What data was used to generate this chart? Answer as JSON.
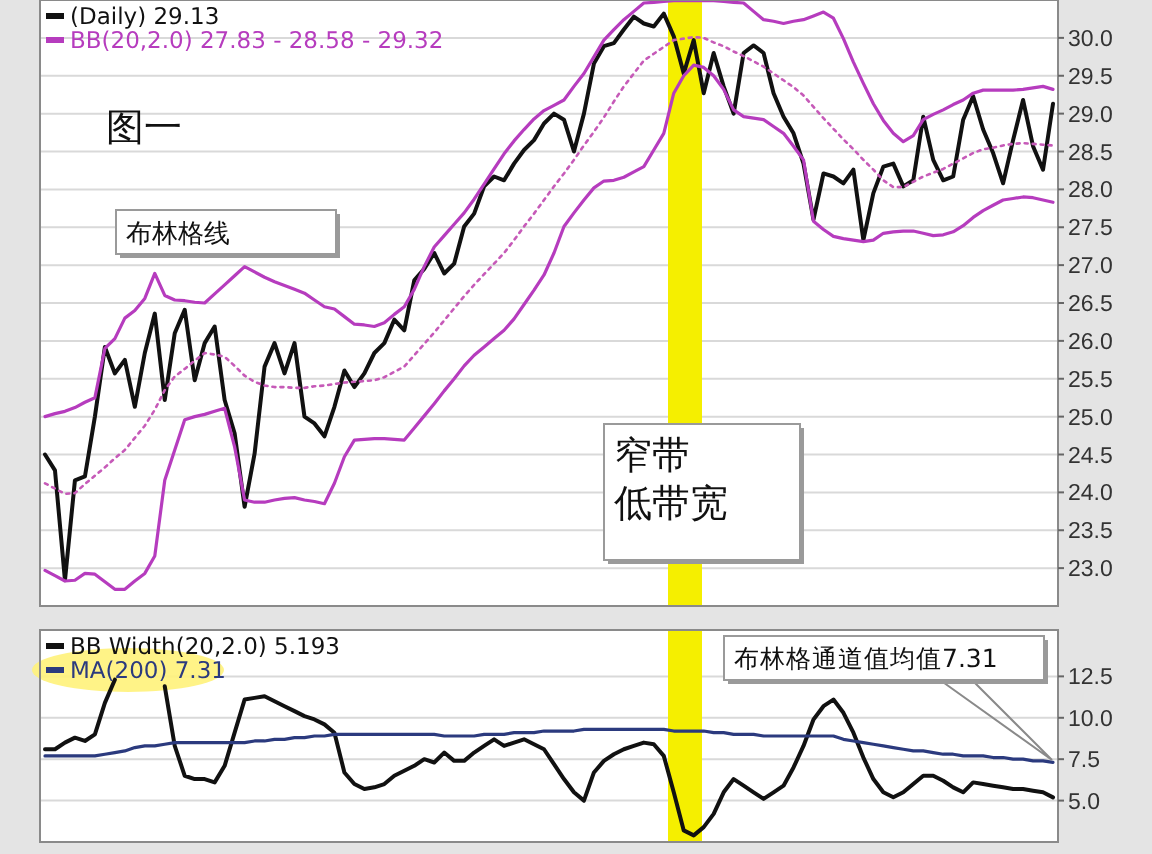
{
  "chart_data": [
    {
      "type": "line",
      "categories": [
        null,
        null,
        null,
        null,
        null,
        null,
        null,
        null,
        null,
        null,
        null,
        null,
        null,
        null,
        null,
        null,
        null,
        null,
        null,
        null,
        null,
        null,
        null,
        null,
        null,
        null,
        null,
        null,
        null,
        null,
        null,
        null,
        null,
        null,
        null,
        null,
        null,
        null,
        null,
        null,
        null,
        null,
        null,
        null,
        null,
        null,
        null,
        null,
        null,
        null,
        null,
        null,
        null,
        null,
        null,
        null,
        null,
        null,
        null,
        null,
        null,
        null,
        null,
        null,
        null,
        null,
        null,
        null,
        null,
        null,
        null,
        null,
        null,
        null,
        null,
        null,
        null,
        null,
        null,
        null,
        null,
        null,
        null,
        null,
        null,
        null,
        null,
        null,
        null,
        null,
        null,
        null,
        null,
        null,
        null,
        null,
        null,
        null,
        null,
        null,
        null,
        null
      ],
      "series": [
        {
          "name": "(Daily) 29.13",
          "color": "#111111",
          "values": [
            24.5,
            24.29,
            22.84,
            24.16,
            24.21,
            25.0,
            25.92,
            25.57,
            25.75,
            25.13,
            25.84,
            26.36,
            25.22,
            26.1,
            26.41,
            25.48,
            25.97,
            26.19,
            25.22,
            24.78,
            23.81,
            24.51,
            25.66,
            25.97,
            25.57,
            25.97,
            25.0,
            24.91,
            24.74,
            25.13,
            25.61,
            25.39,
            25.57,
            25.84,
            25.97,
            26.28,
            26.14,
            26.8,
            26.95,
            27.16,
            26.89,
            27.02,
            27.51,
            27.68,
            28.04,
            28.17,
            28.12,
            28.34,
            28.52,
            28.65,
            28.87,
            29.0,
            28.92,
            28.5,
            29.0,
            29.66,
            29.89,
            29.93,
            30.11,
            30.28,
            30.19,
            30.15,
            30.32,
            30.02,
            29.53,
            29.97,
            29.27,
            29.8,
            29.36,
            29.0,
            29.8,
            29.9,
            29.8,
            29.27,
            28.96,
            28.74,
            28.34,
            27.6,
            28.21,
            28.17,
            28.08,
            28.26,
            27.33,
            27.95,
            28.3,
            28.34,
            28.04,
            28.12,
            28.96,
            28.39,
            28.12,
            28.17,
            28.92,
            29.23,
            28.79,
            28.48,
            28.08,
            28.65,
            29.18,
            28.57,
            28.26,
            29.13
          ]
        },
        {
          "name": "BB(20,2.0) 27.83 - 28.58 - 29.32",
          "color": "#b63cbe",
          "values": [
            25.0,
            25.04,
            25.07,
            25.12,
            25.19,
            25.25,
            25.9,
            26.03,
            26.3,
            26.4,
            26.56,
            26.89,
            26.6,
            26.54,
            26.53,
            26.51,
            26.5,
            26.62,
            26.74,
            26.86,
            26.98,
            26.91,
            26.84,
            26.78,
            26.73,
            26.68,
            26.63,
            26.54,
            26.45,
            26.42,
            26.32,
            26.22,
            26.21,
            26.19,
            26.24,
            26.35,
            26.45,
            26.68,
            26.98,
            27.24,
            27.39,
            27.54,
            27.69,
            27.87,
            28.07,
            28.27,
            28.47,
            28.64,
            28.79,
            28.93,
            29.04,
            29.11,
            29.18,
            29.36,
            29.53,
            29.75,
            29.97,
            30.11,
            30.24,
            30.35,
            30.46,
            30.47,
            30.48,
            30.49,
            30.49,
            30.49,
            30.49,
            30.49,
            30.48,
            30.47,
            30.46,
            30.35,
            30.24,
            30.22,
            30.19,
            30.22,
            30.24,
            30.29,
            30.34,
            30.26,
            29.99,
            29.68,
            29.4,
            29.13,
            28.91,
            28.74,
            28.63,
            28.71,
            28.92,
            28.99,
            29.05,
            29.12,
            29.18,
            29.27,
            29.31,
            29.31,
            29.31,
            29.31,
            29.32,
            29.34,
            29.36,
            29.32
          ]
        },
        {
          "color": "#c65ab8",
          "line_style": "dotted",
          "values": [
            24.12,
            24.05,
            23.98,
            23.99,
            24.11,
            24.22,
            24.33,
            24.45,
            24.56,
            24.72,
            24.88,
            25.09,
            25.35,
            25.53,
            25.63,
            25.74,
            25.84,
            25.82,
            25.79,
            25.67,
            25.54,
            25.46,
            25.41,
            25.39,
            25.39,
            25.38,
            25.38,
            25.4,
            25.41,
            25.43,
            25.45,
            25.46,
            25.47,
            25.48,
            25.52,
            25.59,
            25.66,
            25.81,
            25.96,
            26.11,
            26.27,
            26.43,
            26.59,
            26.74,
            26.88,
            27.02,
            27.16,
            27.33,
            27.51,
            27.68,
            27.86,
            28.04,
            28.21,
            28.39,
            28.58,
            28.76,
            28.95,
            29.16,
            29.36,
            29.53,
            29.7,
            29.79,
            29.88,
            29.97,
            29.99,
            30.01,
            30.0,
            29.94,
            29.89,
            29.82,
            29.76,
            29.69,
            29.62,
            29.53,
            29.44,
            29.35,
            29.24,
            29.09,
            28.94,
            28.8,
            28.66,
            28.53,
            28.39,
            28.26,
            28.12,
            28.03,
            28.03,
            28.1,
            28.17,
            28.22,
            28.27,
            28.34,
            28.41,
            28.48,
            28.53,
            28.55,
            28.58,
            28.6,
            28.61,
            28.6,
            28.59,
            28.58
          ]
        },
        {
          "color": "#b63cbe",
          "values": [
            22.97,
            22.9,
            22.83,
            22.84,
            22.93,
            22.92,
            22.82,
            22.72,
            22.72,
            22.83,
            22.93,
            23.16,
            24.16,
            24.56,
            24.96,
            25.0,
            25.03,
            25.07,
            25.11,
            24.6,
            23.9,
            23.87,
            23.87,
            23.9,
            23.92,
            23.93,
            23.9,
            23.88,
            23.85,
            24.12,
            24.47,
            24.69,
            24.7,
            24.71,
            24.71,
            24.7,
            24.69,
            24.85,
            25.01,
            25.17,
            25.34,
            25.5,
            25.67,
            25.81,
            25.92,
            26.03,
            26.14,
            26.29,
            26.48,
            26.67,
            26.87,
            27.16,
            27.51,
            27.69,
            27.86,
            28.02,
            28.11,
            28.12,
            28.16,
            28.23,
            28.3,
            28.52,
            28.74,
            29.27,
            29.5,
            29.64,
            29.61,
            29.5,
            29.32,
            29.05,
            28.96,
            28.94,
            28.92,
            28.83,
            28.74,
            28.57,
            28.39,
            27.58,
            27.47,
            27.38,
            27.35,
            27.33,
            27.31,
            27.33,
            27.42,
            27.44,
            27.45,
            27.45,
            27.42,
            27.39,
            27.4,
            27.44,
            27.52,
            27.63,
            27.72,
            27.79,
            27.86,
            27.88,
            27.9,
            27.89,
            27.86,
            27.83
          ]
        }
      ],
      "ylim": [
        22.5,
        30.5
      ],
      "yticks": [
        {
          "value": 23,
          "label": "23.0"
        },
        23.5,
        {
          "value": 24,
          "label": "24.0"
        },
        24.5,
        {
          "value": 25,
          "label": "25.0"
        },
        25.5,
        {
          "value": 26,
          "label": "26.0"
        },
        26.5,
        {
          "value": 27,
          "label": "27.0"
        },
        27.5,
        {
          "value": 28,
          "label": "28.0"
        },
        28.5,
        {
          "value": 29,
          "label": "29.0"
        },
        29.5,
        {
          "value": 30,
          "label": "30.0"
        }
      ],
      "grid": "y",
      "legend": "top left",
      "tick_labels": "y",
      "annotations": [
        "图一",
        "布林格线",
        "窄带",
        "低带宽"
      ]
    },
    {
      "type": "line",
      "categories": [
        null,
        null,
        null,
        null,
        null,
        null,
        null,
        null,
        null,
        null,
        null,
        null,
        null,
        null,
        null,
        null,
        null,
        null,
        null,
        null,
        null,
        null,
        null,
        null,
        null,
        null,
        null,
        null,
        null,
        null,
        null,
        null,
        null,
        null,
        null,
        null,
        null,
        null,
        null,
        null,
        null,
        null,
        null,
        null,
        null,
        null,
        null,
        null,
        null,
        null,
        null,
        null,
        null,
        null,
        null,
        null,
        null,
        null,
        null,
        null,
        null,
        null,
        null,
        null,
        null,
        null,
        null,
        null,
        null,
        null,
        null,
        null,
        null,
        null,
        null,
        null,
        null,
        null,
        null,
        null,
        null,
        null,
        null,
        null,
        null,
        null,
        null,
        null,
        null,
        null,
        null,
        null,
        null,
        null,
        null,
        null,
        null,
        null,
        null,
        null,
        null,
        null
      ],
      "series": [
        {
          "name": "BB Width(20,2.0) 5.193",
          "color": "#111111",
          "values": [
            8.1,
            8.1,
            8.5,
            8.8,
            8.6,
            9.0,
            10.9,
            12.3,
            null,
            null,
            null,
            null,
            11.9,
            8.3,
            6.5,
            6.3,
            6.3,
            6.1,
            7.1,
            9.1,
            11.1,
            11.2,
            11.3,
            11.0,
            10.7,
            10.4,
            10.1,
            9.9,
            9.6,
            9.1,
            6.7,
            6.0,
            5.7,
            5.8,
            6.0,
            6.5,
            6.8,
            7.1,
            7.5,
            7.3,
            7.9,
            7.4,
            7.4,
            7.9,
            8.3,
            8.7,
            8.3,
            8.5,
            8.7,
            8.4,
            8.1,
            7.2,
            6.3,
            5.5,
            5.0,
            6.7,
            7.4,
            7.8,
            8.1,
            8.3,
            8.5,
            8.4,
            7.7,
            5.5,
            3.2,
            2.9,
            3.4,
            4.2,
            5.5,
            6.3,
            5.9,
            5.5,
            5.1,
            5.5,
            5.9,
            7.0,
            8.3,
            9.9,
            10.7,
            11.1,
            10.3,
            9.1,
            7.6,
            6.3,
            5.5,
            5.2,
            5.5,
            6.0,
            6.5,
            6.5,
            6.2,
            5.8,
            5.5,
            6.1,
            6.0,
            5.9,
            5.8,
            5.7,
            5.7,
            5.6,
            5.5,
            5.193
          ]
        },
        {
          "name": "MA(200) 7.31",
          "color": "#2b3a7e",
          "values": [
            7.7,
            7.7,
            7.7,
            7.7,
            7.7,
            7.7,
            7.8,
            7.9,
            8.0,
            8.2,
            8.3,
            8.3,
            8.4,
            8.5,
            8.5,
            8.5,
            8.5,
            8.5,
            8.5,
            8.5,
            8.5,
            8.6,
            8.6,
            8.7,
            8.7,
            8.8,
            8.8,
            8.9,
            8.9,
            9.0,
            9.0,
            9.0,
            9.0,
            9.0,
            9.0,
            9.0,
            9.0,
            9.0,
            9.0,
            9.0,
            8.9,
            8.9,
            8.9,
            8.9,
            9.0,
            9.0,
            9.0,
            9.1,
            9.1,
            9.1,
            9.2,
            9.2,
            9.2,
            9.2,
            9.3,
            9.3,
            9.3,
            9.3,
            9.3,
            9.3,
            9.3,
            9.3,
            9.3,
            9.2,
            9.2,
            9.2,
            9.2,
            9.1,
            9.1,
            9.0,
            9.0,
            9.0,
            8.9,
            8.9,
            8.9,
            8.9,
            8.9,
            8.9,
            8.9,
            8.9,
            8.7,
            8.6,
            8.5,
            8.4,
            8.3,
            8.2,
            8.1,
            8.0,
            8.0,
            7.9,
            7.8,
            7.8,
            7.7,
            7.7,
            7.7,
            7.6,
            7.6,
            7.5,
            7.5,
            7.4,
            7.4,
            7.31
          ]
        }
      ],
      "ylim": [
        2.5,
        15.3
      ],
      "yticks": [
        {
          "value": 5,
          "label": "5.0"
        },
        7.5,
        {
          "value": 10,
          "label": "10.0"
        },
        12.5
      ],
      "grid": "y",
      "legend": "top left",
      "tick_labels": "y",
      "annotations": [
        "布林格通道值均值7.31"
      ]
    }
  ]
}
